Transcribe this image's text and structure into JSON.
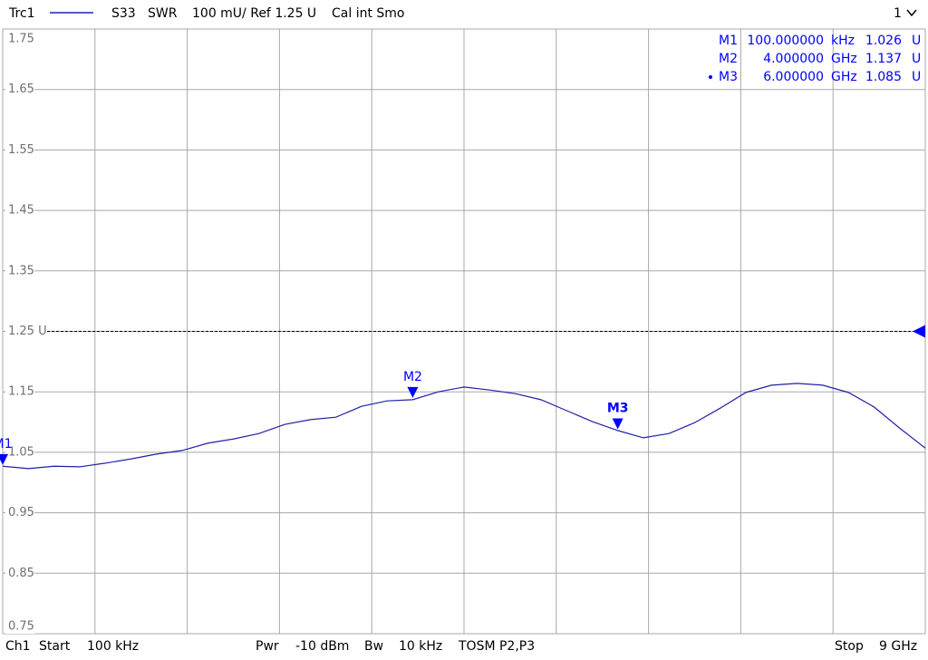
{
  "header": {
    "trace": "Trc1",
    "parameter": "S33",
    "format": "SWR",
    "scale": "100 mU/ Ref 1.25 U",
    "flags": "Cal int Smo",
    "window": "1"
  },
  "footer": {
    "channel": "Ch1",
    "start_label": "Start",
    "start": "100 kHz",
    "power_label": "Pwr",
    "power": "-10 dBm",
    "bw_label": "Bw",
    "bw": "10 kHz",
    "cal": "TOSM P2,P3",
    "stop_label": "Stop",
    "stop": "9 GHz"
  },
  "chart_data": {
    "type": "line",
    "x": [
      0.0001,
      0.25,
      0.5,
      0.75,
      1.0,
      1.25,
      1.5,
      1.75,
      2.0,
      2.25,
      2.5,
      2.75,
      3.0,
      3.25,
      3.5,
      3.75,
      4.0,
      4.25,
      4.5,
      4.75,
      5.0,
      5.25,
      5.5,
      5.75,
      6.0,
      6.25,
      6.5,
      6.75,
      7.0,
      7.25,
      7.5,
      7.75,
      8.0,
      8.25,
      8.5,
      8.75,
      9.0
    ],
    "series": [
      {
        "name": "Trc1",
        "color": "#2020a8",
        "values": [
          1.027,
          1.023,
          1.027,
          1.026,
          1.032,
          1.039,
          1.047,
          1.053,
          1.065,
          1.072,
          1.081,
          1.096,
          1.104,
          1.108,
          1.126,
          1.135,
          1.137,
          1.15,
          1.158,
          1.153,
          1.147,
          1.137,
          1.119,
          1.101,
          1.086,
          1.074,
          1.081,
          1.099,
          1.123,
          1.149,
          1.161,
          1.164,
          1.161,
          1.149,
          1.125,
          1.09,
          1.057
        ]
      }
    ],
    "xlim": [
      0.0001,
      9
    ],
    "ylim": [
      0.75,
      1.75
    ],
    "yticks": [
      1.75,
      1.65,
      1.55,
      1.45,
      1.35,
      {
        "value": 1.25,
        "label": "1.25 U"
      },
      1.15,
      1.05,
      0.95,
      0.85,
      0.75
    ],
    "xgrid_divisions": 10,
    "ref_level": 1.25,
    "grid": true,
    "marker_color": "#0000ff",
    "markers": [
      {
        "name": "M1",
        "x": 0.0001,
        "freq": "100.000000",
        "unit": "kHz",
        "value": 1.026,
        "value_unit": "U"
      },
      {
        "name": "M2",
        "x": 4,
        "freq": "4.000000",
        "unit": "GHz",
        "value": 1.137,
        "value_unit": "U"
      },
      {
        "name": "M3",
        "x": 6,
        "freq": "6.000000",
        "unit": "GHz",
        "value": 1.085,
        "value_unit": "U",
        "active": true
      }
    ]
  }
}
